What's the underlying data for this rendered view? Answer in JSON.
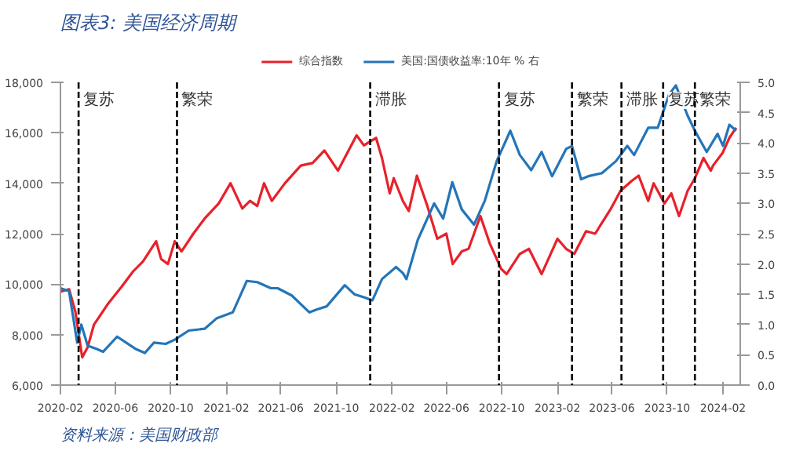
{
  "chart_data": {
    "type": "line",
    "title": "图表3: 美国经济周期",
    "x": [
      "2020-02-01",
      "2020-02-20",
      "2020-03-05",
      "2020-03-20",
      "2020-04-01",
      "2020-04-15",
      "2020-05-15",
      "2020-06-15",
      "2020-07-10",
      "2020-08-01",
      "2020-08-30",
      "2020-09-10",
      "2020-09-25",
      "2020-10-10",
      "2020-10-25",
      "2020-11-20",
      "2020-12-15",
      "2021-01-15",
      "2021-02-10",
      "2021-03-08",
      "2021-03-25",
      "2021-04-10",
      "2021-04-25",
      "2021-05-12",
      "2021-06-10",
      "2021-07-15",
      "2021-08-10",
      "2021-09-05",
      "2021-10-05",
      "2021-11-15",
      "2021-12-01",
      "2021-12-10",
      "2021-12-28",
      "2022-01-10",
      "2022-01-27",
      "2022-02-05",
      "2022-02-25",
      "2022-03-10",
      "2022-03-28",
      "2022-04-20",
      "2022-05-12",
      "2022-06-01",
      "2022-06-15",
      "2022-07-05",
      "2022-07-20",
      "2022-08-15",
      "2022-09-05",
      "2022-09-30",
      "2022-10-12",
      "2022-11-10",
      "2022-11-30",
      "2022-12-28",
      "2023-02-01",
      "2023-02-20",
      "2023-03-10",
      "2023-04-05",
      "2023-04-25",
      "2023-05-30",
      "2023-06-20",
      "2023-07-15",
      "2023-07-30",
      "2023-08-20",
      "2023-09-01",
      "2023-09-25",
      "2023-10-10",
      "2023-10-27",
      "2023-11-15",
      "2023-12-01",
      "2023-12-20",
      "2024-01-05",
      "2024-01-10",
      "2024-01-31",
      "2024-02-15",
      "2024-03-01"
    ],
    "series": [
      {
        "name": "综合指数",
        "color": "#e8212a",
        "values": [
          9700,
          9800,
          8900,
          7100,
          7500,
          8400,
          9200,
          9900,
          10500,
          10900,
          11700,
          11000,
          10800,
          11700,
          11300,
          12000,
          12600,
          13200,
          14000,
          13000,
          13300,
          13100,
          14000,
          13300,
          14000,
          14700,
          14800,
          15300,
          14500,
          15900,
          15500,
          15600,
          15800,
          15000,
          13600,
          14200,
          13300,
          12900,
          14300,
          13100,
          11800,
          12000,
          10800,
          11300,
          11400,
          12700,
          11600,
          10600,
          10400,
          11200,
          11400,
          10400,
          11800,
          11400,
          11200,
          12100,
          12000,
          13000,
          13700,
          14100,
          14300,
          13300,
          14000,
          13200,
          13600,
          12700,
          13700,
          14200,
          15000,
          14500,
          14700,
          15200,
          15800,
          16200
        ]
      },
      {
        "name": "美国:国债收益率:10年 % 右",
        "color": "#2475b8",
        "axis": "y2",
        "x": [
          "2020-02-01",
          "2020-02-20",
          "2020-03-09",
          "2020-03-18",
          "2020-04-01",
          "2020-04-20",
          "2020-05-05",
          "2020-06-05",
          "2020-07-15",
          "2020-08-05",
          "2020-08-25",
          "2020-09-20",
          "2020-10-10",
          "2020-11-10",
          "2020-12-15",
          "2021-01-10",
          "2021-02-15",
          "2021-03-18",
          "2021-04-10",
          "2021-05-10",
          "2021-05-25",
          "2021-06-25",
          "2021-08-03",
          "2021-08-20",
          "2021-09-10",
          "2021-10-20",
          "2021-11-10",
          "2021-12-01",
          "2021-12-20",
          "2022-01-10",
          "2022-02-10",
          "2022-02-25",
          "2022-03-05",
          "2022-03-30",
          "2022-05-05",
          "2022-05-25",
          "2022-06-14",
          "2022-07-05",
          "2022-08-01",
          "2022-08-25",
          "2022-09-20",
          "2022-10-20",
          "2022-11-10",
          "2022-12-05",
          "2022-12-28",
          "2023-01-20",
          "2023-02-20",
          "2023-03-05",
          "2023-03-25",
          "2023-04-10",
          "2023-05-10",
          "2023-06-10",
          "2023-07-05",
          "2023-07-20",
          "2023-08-20",
          "2023-09-10",
          "2023-10-05",
          "2023-10-20",
          "2023-11-15",
          "2023-12-01",
          "2023-12-27",
          "2024-01-20",
          "2024-02-01",
          "2024-02-15",
          "2024-03-01"
        ],
        "values": [
          1.6,
          1.55,
          0.7,
          1.0,
          0.65,
          0.6,
          0.55,
          0.8,
          0.6,
          0.53,
          0.7,
          0.68,
          0.75,
          0.9,
          0.93,
          1.1,
          1.2,
          1.72,
          1.7,
          1.6,
          1.6,
          1.48,
          1.2,
          1.25,
          1.3,
          1.65,
          1.5,
          1.45,
          1.4,
          1.75,
          1.95,
          1.85,
          1.75,
          2.4,
          3.0,
          2.75,
          3.35,
          2.9,
          2.65,
          3.05,
          3.7,
          4.2,
          3.8,
          3.55,
          3.85,
          3.45,
          3.9,
          3.95,
          3.4,
          3.45,
          3.5,
          3.7,
          3.95,
          3.8,
          4.25,
          4.25,
          4.8,
          4.95,
          4.45,
          4.2,
          3.85,
          4.15,
          3.95,
          4.3,
          4.2
        ]
      }
    ],
    "xlim": [
      "2020-02-01",
      "2024-03-10"
    ],
    "xticks": [
      "2020-02",
      "2020-06",
      "2020-10",
      "2021-02",
      "2021-06",
      "2021-10",
      "2022-02",
      "2022-06",
      "2022-10",
      "2023-02",
      "2023-06",
      "2023-10",
      "2024-02"
    ],
    "ylim": [
      6000,
      18000
    ],
    "yticks": [
      {
        "value": 6000,
        "label": "6,000"
      },
      {
        "value": 8000,
        "label": "8,000"
      },
      {
        "value": 10000,
        "label": "10,000"
      },
      {
        "value": 12000,
        "label": "12,000"
      },
      {
        "value": 14000,
        "label": "14,000"
      },
      {
        "value": 16000,
        "label": "16,000"
      },
      {
        "value": 18000,
        "label": "18,000"
      }
    ],
    "y2lim": [
      0,
      5
    ],
    "y2ticks": [
      {
        "value": 0,
        "label": "0.0"
      },
      {
        "value": 0.5,
        "label": "0.5"
      },
      {
        "value": 1,
        "label": "1.0"
      },
      {
        "value": 1.5,
        "label": "1.5"
      },
      {
        "value": 2,
        "label": "2.0"
      },
      {
        "value": 2.5,
        "label": "2.5"
      },
      {
        "value": 3,
        "label": "3.0"
      },
      {
        "value": 3.5,
        "label": "3.5"
      },
      {
        "value": 4,
        "label": "4.0"
      },
      {
        "value": 4.5,
        "label": "4.5"
      },
      {
        "value": 5,
        "label": "5.0"
      }
    ],
    "ref_lines": [
      {
        "axis": "x",
        "value": "2020-03-12",
        "color": "#000000",
        "line_style": "dashed",
        "label": "复苏"
      },
      {
        "axis": "x",
        "value": "2020-10-15",
        "color": "#000000",
        "line_style": "dashed",
        "label": "繁荣"
      },
      {
        "axis": "x",
        "value": "2021-12-15",
        "color": "#000000",
        "line_style": "dashed",
        "label": "滞胀"
      },
      {
        "axis": "x",
        "value": "2022-09-25",
        "color": "#000000",
        "line_style": "dashed",
        "label": "复苏"
      },
      {
        "axis": "x",
        "value": "2023-03-05",
        "color": "#000000",
        "line_style": "dashed",
        "label": "繁荣"
      },
      {
        "axis": "x",
        "value": "2023-06-22",
        "color": "#000000",
        "line_style": "dashed",
        "label": "滞胀"
      },
      {
        "axis": "x",
        "value": "2023-09-22",
        "color": "#000000",
        "line_style": "dashed",
        "label": "复苏"
      },
      {
        "axis": "x",
        "value": "2023-12-01",
        "color": "#000000",
        "line_style": "dashed",
        "label": "繁荣"
      }
    ],
    "annotations": [
      "资料来源：美国财政部"
    ],
    "grid": false,
    "legend": "top",
    "line_style": "solid",
    "marker": "none"
  }
}
